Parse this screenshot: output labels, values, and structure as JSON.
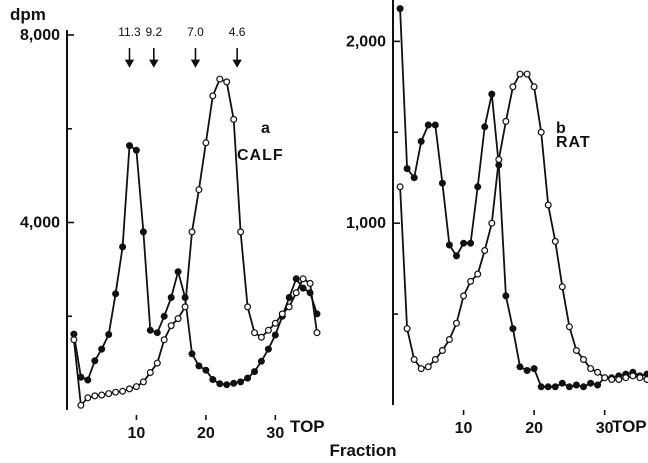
{
  "figure": {
    "xlabel": "Fraction"
  },
  "chart_data": [
    {
      "type": "line",
      "panel_label": "a",
      "panel_name": "CALF",
      "ylabel": "dpm",
      "xlabel": "Fraction",
      "x_end_label": "TOP",
      "xlim": [
        0,
        36
      ],
      "ylim": [
        0,
        8000
      ],
      "grid": false,
      "x_ticks": [
        {
          "value": 10,
          "label": "10"
        },
        {
          "value": 20,
          "label": "20"
        },
        {
          "value": 30,
          "label": "30"
        }
      ],
      "y_ticks": [
        {
          "value": 4000,
          "label": "4,000"
        },
        {
          "value": 8000,
          "label": "8,000"
        }
      ],
      "markers": [
        {
          "fraction": 9,
          "label": "11.3"
        },
        {
          "fraction": 12.5,
          "label": "9.2"
        },
        {
          "fraction": 18.5,
          "label": "7.0"
        },
        {
          "fraction": 24.5,
          "label": "4.6"
        }
      ],
      "series": [
        {
          "marker": "filled",
          "x": [
            1,
            2,
            3,
            4,
            5,
            6,
            7,
            8,
            9,
            10,
            11,
            12,
            13,
            14,
            15,
            16,
            17,
            18,
            19,
            20,
            21,
            22,
            23,
            24,
            25,
            26,
            27,
            28,
            29,
            30,
            31,
            32,
            33,
            34,
            35,
            36
          ],
          "y": [
            1620,
            700,
            640,
            1050,
            1300,
            1610,
            2480,
            3480,
            5640,
            5540,
            3800,
            1700,
            1650,
            2000,
            2400,
            2950,
            2400,
            1200,
            940,
            850,
            650,
            560,
            540,
            570,
            600,
            680,
            820,
            1040,
            1300,
            1600,
            2000,
            2400,
            2800,
            2600,
            2500,
            2050
          ]
        },
        {
          "marker": "open",
          "x": [
            1,
            2,
            3,
            4,
            5,
            6,
            7,
            8,
            9,
            10,
            11,
            12,
            13,
            14,
            15,
            16,
            17,
            18,
            19,
            20,
            21,
            22,
            23,
            24,
            25,
            26,
            27,
            28,
            29,
            30,
            31,
            32,
            33,
            34,
            35,
            36
          ],
          "y": [
            1500,
            100,
            260,
            300,
            320,
            350,
            380,
            400,
            450,
            500,
            600,
            800,
            1000,
            1500,
            1800,
            1950,
            2200,
            3800,
            4700,
            5700,
            6700,
            7060,
            7000,
            6200,
            3800,
            2200,
            1650,
            1550,
            1700,
            1850,
            2050,
            2200,
            2500,
            2800,
            2700,
            1650
          ]
        }
      ]
    },
    {
      "type": "line",
      "panel_label": "b",
      "panel_name": "RAT",
      "xlabel": "Fraction",
      "x_end_label": "TOP",
      "xlim": [
        0,
        36
      ],
      "ylim": [
        0,
        2200
      ],
      "grid": false,
      "x_ticks": [
        {
          "value": 10,
          "label": "10"
        },
        {
          "value": 20,
          "label": "20"
        },
        {
          "value": 30,
          "label": "30"
        }
      ],
      "y_ticks": [
        {
          "value": 1000,
          "label": "1,000"
        },
        {
          "value": 2000,
          "label": "2,000"
        }
      ],
      "series": [
        {
          "marker": "filled",
          "x": [
            1,
            2,
            3,
            4,
            5,
            6,
            7,
            8,
            9,
            10,
            11,
            12,
            13,
            14,
            15,
            16,
            17,
            18,
            19,
            20,
            21,
            22,
            23,
            24,
            25,
            26,
            27,
            28,
            29,
            30,
            31,
            32,
            33,
            34,
            35,
            36
          ],
          "y": [
            2180,
            1300,
            1250,
            1450,
            1540,
            1540,
            1220,
            880,
            820,
            890,
            890,
            1200,
            1530,
            1710,
            1320,
            600,
            420,
            210,
            190,
            200,
            100,
            100,
            100,
            120,
            100,
            110,
            100,
            120,
            110,
            150,
            150,
            160,
            170,
            180,
            160,
            170
          ]
        },
        {
          "marker": "open",
          "x": [
            1,
            2,
            3,
            4,
            5,
            6,
            7,
            8,
            9,
            10,
            11,
            12,
            13,
            14,
            15,
            16,
            17,
            18,
            19,
            20,
            21,
            22,
            23,
            24,
            25,
            26,
            27,
            28,
            29,
            30,
            31,
            32,
            33,
            34,
            35,
            36
          ],
          "y": [
            1200,
            420,
            250,
            200,
            210,
            250,
            300,
            360,
            450,
            600,
            680,
            720,
            850,
            1000,
            1350,
            1560,
            1750,
            1820,
            1820,
            1750,
            1500,
            1100,
            900,
            650,
            430,
            300,
            250,
            200,
            180,
            150,
            140,
            140,
            150,
            160,
            150,
            140
          ]
        }
      ]
    }
  ]
}
